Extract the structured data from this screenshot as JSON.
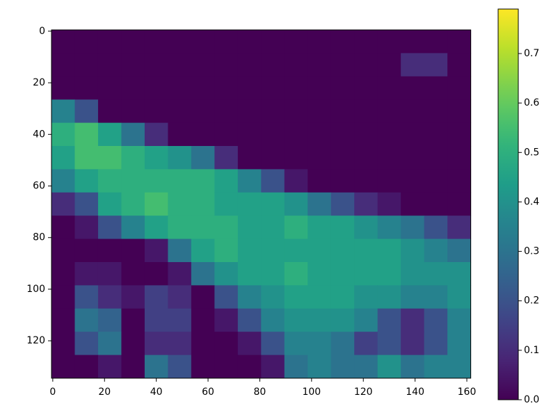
{
  "chart_data": {
    "type": "heatmap",
    "colormap": "viridis",
    "xlim": [
      -0.5,
      161.5
    ],
    "ylim": [
      134.5,
      -0.5
    ],
    "xticks": [
      0,
      20,
      40,
      60,
      80,
      100,
      120,
      140,
      160
    ],
    "yticks": [
      0,
      20,
      40,
      60,
      80,
      100,
      120
    ],
    "xbins": [
      -0.5,
      8.5,
      17.5,
      26.5,
      35.5,
      44.5,
      53.5,
      62.5,
      71.5,
      80.5,
      89.5,
      98.5,
      107.5,
      116.5,
      125.5,
      134.5,
      143.5,
      152.5,
      161.5
    ],
    "ybins": [
      -0.5,
      8.5,
      17.5,
      26.5,
      35.5,
      44.5,
      53.5,
      62.5,
      71.5,
      80.5,
      89.5,
      98.5,
      107.5,
      116.5,
      125.5,
      134.5
    ],
    "clim": [
      0,
      0.79
    ],
    "cticks": [
      {
        "value": 0,
        "label": "0.0"
      },
      0.1,
      0.2,
      0.3,
      0.4,
      0.5,
      0.6,
      0.7
    ],
    "z": [
      [
        0,
        0,
        0,
        0,
        0,
        0,
        0,
        0,
        0,
        0,
        0,
        0,
        0,
        0,
        0,
        0,
        0,
        0
      ],
      [
        0,
        0,
        0,
        0,
        0,
        0,
        0,
        0,
        0,
        0,
        0,
        0,
        0,
        0,
        0,
        0.1,
        0.1,
        0
      ],
      [
        0,
        0,
        0,
        0,
        0,
        0,
        0,
        0,
        0,
        0,
        0,
        0,
        0,
        0,
        0,
        0,
        0,
        0
      ],
      [
        0.35,
        0.2,
        0,
        0,
        0,
        0,
        0,
        0,
        0,
        0,
        0,
        0,
        0,
        0,
        0,
        0,
        0,
        0
      ],
      [
        0.5,
        0.55,
        0.45,
        0.3,
        0.1,
        0,
        0,
        0,
        0,
        0,
        0,
        0,
        0,
        0,
        0,
        0,
        0,
        0
      ],
      [
        0.45,
        0.55,
        0.55,
        0.5,
        0.45,
        0.4,
        0.3,
        0.1,
        0,
        0,
        0,
        0,
        0,
        0,
        0,
        0,
        0,
        0
      ],
      [
        0.35,
        0.45,
        0.5,
        0.5,
        0.5,
        0.5,
        0.5,
        0.45,
        0.35,
        0.2,
        0.05,
        0,
        0,
        0,
        0,
        0,
        0,
        0
      ],
      [
        0.1,
        0.2,
        0.45,
        0.5,
        0.55,
        0.5,
        0.5,
        0.45,
        0.45,
        0.45,
        0.4,
        0.3,
        0.2,
        0.1,
        0.05,
        0,
        0,
        0
      ],
      [
        0,
        0.05,
        0.2,
        0.35,
        0.45,
        0.5,
        0.5,
        0.5,
        0.45,
        0.45,
        0.5,
        0.45,
        0.45,
        0.4,
        0.35,
        0.3,
        0.2,
        0.1
      ],
      [
        0,
        0,
        0,
        0,
        0.05,
        0.3,
        0.45,
        0.5,
        0.45,
        0.45,
        0.45,
        0.45,
        0.45,
        0.45,
        0.45,
        0.4,
        0.35,
        0.3
      ],
      [
        0,
        0.05,
        0.05,
        0,
        0,
        0.05,
        0.3,
        0.4,
        0.45,
        0.45,
        0.5,
        0.45,
        0.45,
        0.45,
        0.45,
        0.4,
        0.4,
        0.4
      ],
      [
        0,
        0.2,
        0.1,
        0.05,
        0.15,
        0.1,
        0,
        0.2,
        0.35,
        0.4,
        0.45,
        0.45,
        0.45,
        0.4,
        0.4,
        0.35,
        0.35,
        0.4
      ],
      [
        0,
        0.3,
        0.25,
        0,
        0.15,
        0.15,
        0,
        0.05,
        0.2,
        0.35,
        0.4,
        0.4,
        0.4,
        0.35,
        0.2,
        0.1,
        0.2,
        0.35
      ],
      [
        0,
        0.2,
        0.3,
        0,
        0.1,
        0.1,
        0,
        0,
        0.05,
        0.2,
        0.35,
        0.35,
        0.3,
        0.15,
        0.2,
        0.1,
        0.2,
        0.35
      ],
      [
        0,
        0,
        0.05,
        0,
        0.3,
        0.2,
        0,
        0,
        0,
        0.05,
        0.3,
        0.35,
        0.3,
        0.3,
        0.4,
        0.3,
        0.35,
        0.35
      ]
    ]
  }
}
